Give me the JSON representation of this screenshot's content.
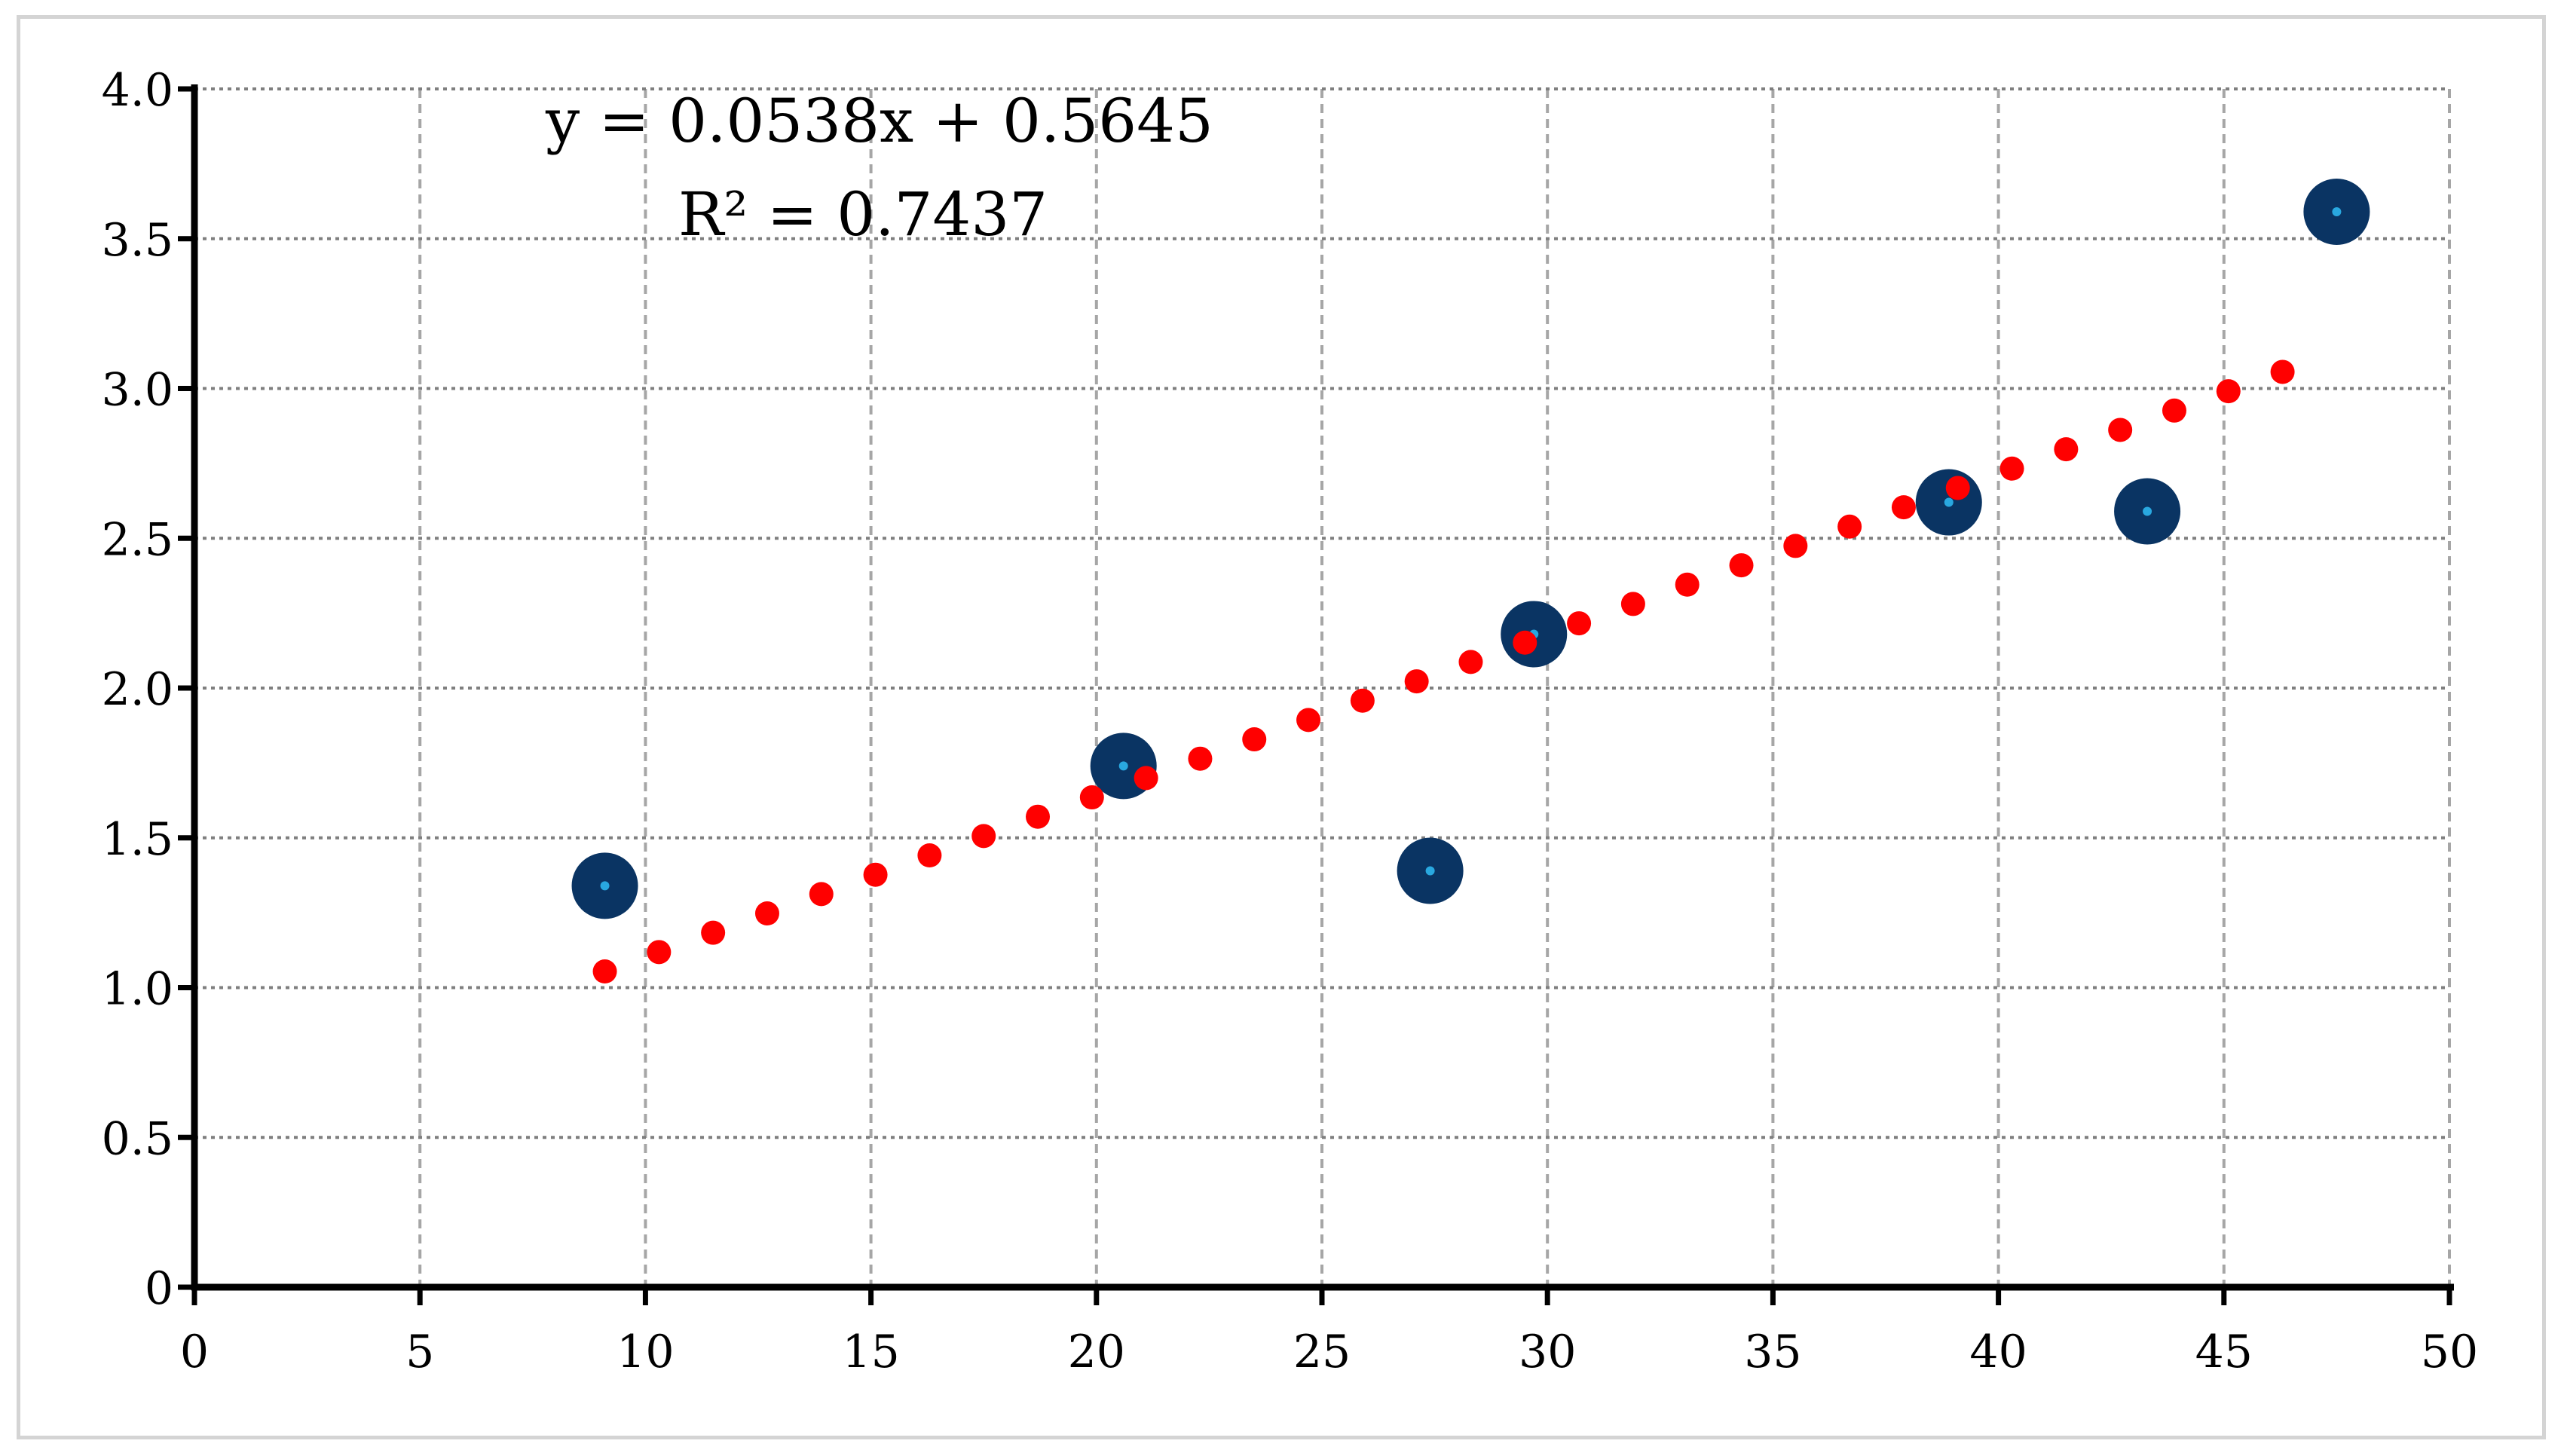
{
  "chart_data": {
    "type": "scatter",
    "title": "",
    "xlabel": "",
    "ylabel": "",
    "xlim": [
      0,
      50
    ],
    "ylim": [
      0,
      4.0
    ],
    "x_ticks": [
      "0",
      "5",
      "10",
      "15",
      "20",
      "25",
      "30",
      "35",
      "40",
      "45",
      "50"
    ],
    "y_ticks": [
      "0",
      "0.5",
      "1.0",
      "1.5",
      "2.0",
      "2.5",
      "3.0",
      "3.5",
      "4.0"
    ],
    "grid": true,
    "legend": "none",
    "series": [
      {
        "kind": "observed",
        "color": "#0a3463",
        "center_color": "#29a8e0",
        "points": [
          {
            "x": 9.1,
            "y": 1.34
          },
          {
            "x": 20.6,
            "y": 1.74
          },
          {
            "x": 27.4,
            "y": 1.39
          },
          {
            "x": 29.7,
            "y": 2.18
          },
          {
            "x": 38.9,
            "y": 2.62
          },
          {
            "x": 43.3,
            "y": 2.59
          },
          {
            "x": 47.5,
            "y": 3.59
          }
        ]
      },
      {
        "kind": "linear-trendline",
        "color": "#ff0000",
        "line_style": "round-dot",
        "slope": 0.0538,
        "intercept": 0.5645,
        "x_range": [
          9.1,
          47.2
        ]
      }
    ],
    "annotations": {
      "equation": "y = 0.0538x + 0.5645",
      "r_squared": "R² = 0.7437"
    }
  }
}
